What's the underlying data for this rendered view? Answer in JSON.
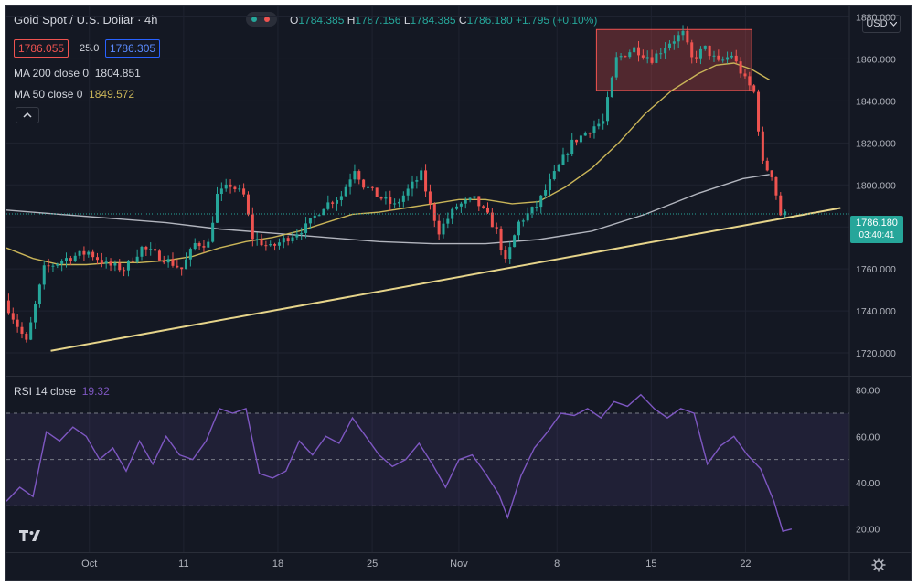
{
  "header": {
    "symbol": "Gold Spot / U.S. Dollar · 4h",
    "ohlc": {
      "o_label": "O",
      "o": "1784.385",
      "h_label": "H",
      "h": "1787.156",
      "l_label": "L",
      "l": "1784.385",
      "c_label": "C",
      "c": "1786.180",
      "change": "+1.795 (+0.10%)"
    },
    "sell_price": "1786.055",
    "spread": "25.0",
    "buy_price": "1786.305",
    "currency": "USD",
    "ma200_label": "MA 200 close 0",
    "ma200_value": "1804.851",
    "ma50_label": "MA 50 close 0",
    "ma50_value": "1849.572"
  },
  "price_tag": {
    "price": "1786.180",
    "countdown": "03:40:41"
  },
  "rsi": {
    "label": "RSI 14 close",
    "value": "19.32"
  },
  "icons": {
    "collapse": "chevron-up-icon",
    "logo": "tradingview-logo-icon",
    "settings": "gear-icon",
    "dropdown": "chevron-down-icon"
  },
  "colors": {
    "up": "#26a69a",
    "down": "#ef5350",
    "ma50": "#c9b458",
    "ma200": "#b2b5be",
    "trendline": "#e6d48a",
    "rsi": "#7e57c2",
    "background": "#141823"
  },
  "chart_data": [
    {
      "type": "candlestick",
      "x_ticks": [
        "Oct",
        "11",
        "18",
        "25",
        "Nov",
        "8",
        "15",
        "22"
      ],
      "ylim": [
        1710,
        1885
      ],
      "y_ticks": [
        "1720.000",
        "1740.000",
        "1760.000",
        "1780.000",
        "1800.000",
        "1820.000",
        "1840.000",
        "1860.000",
        "1880.000"
      ],
      "price_path": [
        [
          0,
          1745
        ],
        [
          5,
          1725
        ],
        [
          9,
          1760
        ],
        [
          14,
          1765
        ],
        [
          19,
          1768
        ],
        [
          23,
          1762
        ],
        [
          27,
          1760
        ],
        [
          31,
          1770
        ],
        [
          36,
          1765
        ],
        [
          40,
          1760
        ],
        [
          43,
          1772
        ],
        [
          46,
          1772
        ],
        [
          48,
          1795
        ],
        [
          51,
          1800
        ],
        [
          54,
          1795
        ],
        [
          56,
          1775
        ],
        [
          60,
          1770
        ],
        [
          64,
          1775
        ],
        [
          68,
          1780
        ],
        [
          72,
          1790
        ],
        [
          76,
          1795
        ],
        [
          79,
          1808
        ],
        [
          81,
          1800
        ],
        [
          84,
          1795
        ],
        [
          88,
          1790
        ],
        [
          92,
          1800
        ],
        [
          94,
          1805
        ],
        [
          96,
          1790
        ],
        [
          98,
          1778
        ],
        [
          102,
          1790
        ],
        [
          106,
          1793
        ],
        [
          109,
          1785
        ],
        [
          111,
          1778
        ],
        [
          113,
          1763
        ],
        [
          116,
          1782
        ],
        [
          120,
          1790
        ],
        [
          124,
          1805
        ],
        [
          128,
          1820
        ],
        [
          133,
          1828
        ],
        [
          135,
          1830
        ],
        [
          138,
          1860
        ],
        [
          142,
          1865
        ],
        [
          146,
          1860
        ],
        [
          150,
          1868
        ],
        [
          153,
          1872
        ],
        [
          155,
          1860
        ],
        [
          158,
          1865
        ],
        [
          161,
          1858
        ],
        [
          164,
          1862
        ],
        [
          167,
          1850
        ],
        [
          169,
          1844
        ],
        [
          171,
          1810
        ],
        [
          173,
          1805
        ],
        [
          175,
          1786
        ]
      ],
      "ma50_path": [
        [
          0,
          1770
        ],
        [
          6,
          1765
        ],
        [
          12,
          1762
        ],
        [
          18,
          1762
        ],
        [
          24,
          1763
        ],
        [
          30,
          1763
        ],
        [
          36,
          1764
        ],
        [
          42,
          1766
        ],
        [
          48,
          1770
        ],
        [
          54,
          1773
        ],
        [
          60,
          1775
        ],
        [
          66,
          1778
        ],
        [
          72,
          1782
        ],
        [
          78,
          1786
        ],
        [
          84,
          1787
        ],
        [
          90,
          1789
        ],
        [
          96,
          1791
        ],
        [
          102,
          1793
        ],
        [
          108,
          1793
        ],
        [
          114,
          1791
        ],
        [
          120,
          1792
        ],
        [
          126,
          1799
        ],
        [
          132,
          1808
        ],
        [
          138,
          1820
        ],
        [
          144,
          1834
        ],
        [
          150,
          1845
        ],
        [
          156,
          1853
        ],
        [
          160,
          1857
        ],
        [
          164,
          1858
        ],
        [
          168,
          1855
        ],
        [
          172,
          1850
        ]
      ],
      "ma200_path": [
        [
          0,
          1788
        ],
        [
          12,
          1786
        ],
        [
          24,
          1784
        ],
        [
          36,
          1782
        ],
        [
          48,
          1779
        ],
        [
          60,
          1777
        ],
        [
          72,
          1775
        ],
        [
          84,
          1773
        ],
        [
          96,
          1772
        ],
        [
          108,
          1772
        ],
        [
          120,
          1774
        ],
        [
          132,
          1778
        ],
        [
          144,
          1786
        ],
        [
          156,
          1796
        ],
        [
          166,
          1803
        ],
        [
          172,
          1805
        ]
      ],
      "trendline": [
        [
          10,
          1721
        ],
        [
          188,
          1789
        ]
      ],
      "range_box": {
        "x": [
          133,
          168
        ],
        "y": [
          1845,
          1874
        ]
      },
      "last_price": 1786.18
    },
    {
      "type": "line",
      "name": "RSI 14 close",
      "ylim": [
        10,
        85
      ],
      "y_ticks": [
        "20.00",
        "40.00",
        "60.00",
        "80.00"
      ],
      "bands": [
        30,
        50,
        70
      ],
      "values": [
        [
          0,
          32
        ],
        [
          3,
          38
        ],
        [
          6,
          34
        ],
        [
          9,
          62
        ],
        [
          12,
          58
        ],
        [
          15,
          64
        ],
        [
          18,
          60
        ],
        [
          21,
          50
        ],
        [
          24,
          55
        ],
        [
          27,
          45
        ],
        [
          30,
          58
        ],
        [
          33,
          48
        ],
        [
          36,
          60
        ],
        [
          39,
          52
        ],
        [
          42,
          50
        ],
        [
          45,
          58
        ],
        [
          48,
          72
        ],
        [
          51,
          70
        ],
        [
          54,
          72
        ],
        [
          57,
          44
        ],
        [
          60,
          42
        ],
        [
          63,
          45
        ],
        [
          66,
          58
        ],
        [
          69,
          52
        ],
        [
          72,
          60
        ],
        [
          75,
          57
        ],
        [
          78,
          68
        ],
        [
          81,
          60
        ],
        [
          84,
          52
        ],
        [
          87,
          47
        ],
        [
          90,
          50
        ],
        [
          93,
          57
        ],
        [
          96,
          48
        ],
        [
          99,
          38
        ],
        [
          102,
          50
        ],
        [
          105,
          52
        ],
        [
          108,
          44
        ],
        [
          111,
          35
        ],
        [
          113,
          25
        ],
        [
          116,
          43
        ],
        [
          119,
          55
        ],
        [
          122,
          62
        ],
        [
          125,
          70
        ],
        [
          128,
          69
        ],
        [
          131,
          72
        ],
        [
          134,
          68
        ],
        [
          137,
          75
        ],
        [
          140,
          73
        ],
        [
          143,
          78
        ],
        [
          146,
          72
        ],
        [
          149,
          68
        ],
        [
          152,
          72
        ],
        [
          155,
          70
        ],
        [
          158,
          48
        ],
        [
          161,
          56
        ],
        [
          164,
          60
        ],
        [
          167,
          52
        ],
        [
          170,
          46
        ],
        [
          173,
          32
        ],
        [
          175,
          19
        ],
        [
          177,
          20
        ]
      ]
    }
  ]
}
